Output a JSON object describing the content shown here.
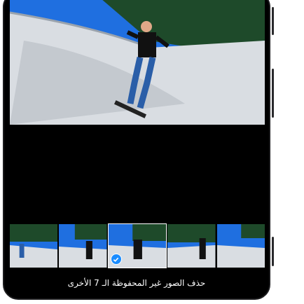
{
  "screen": {
    "action_text": "حذف الصور غير المحفوظة الـ 7 الأخرى",
    "selected_check_icon": "checkmark-icon"
  },
  "colors": {
    "sky": "#1f6fe0",
    "concrete": "#d9dde2",
    "trees": "#1e4a2a",
    "accent": "#1a8cff"
  },
  "thumbnails": [
    "photo-1",
    "photo-2",
    "photo-3",
    "photo-4",
    "photo-5"
  ]
}
